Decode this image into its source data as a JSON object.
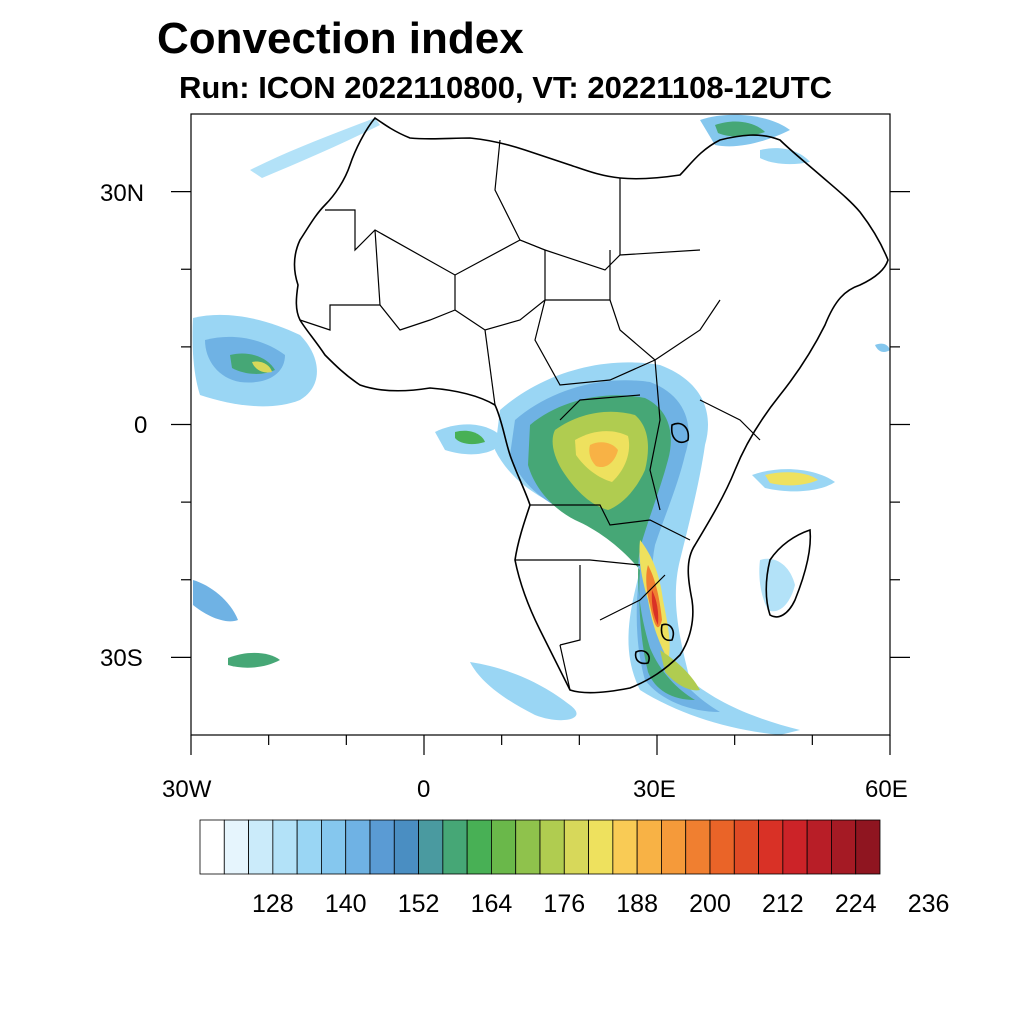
{
  "title": "Convection index",
  "subtitle": "Run: ICON 2022110800,  VT: 20221108-12UTC",
  "lat_labels": [
    "30N",
    "0",
    "30S"
  ],
  "lon_labels": [
    "30W",
    "0",
    "30E",
    "60E"
  ],
  "map_extent": {
    "lon_min": -30,
    "lon_max": 60,
    "lat_min": -40,
    "lat_max": 40
  },
  "colorbar": {
    "colors": [
      "#ffffff",
      "#e6f5fd",
      "#cbebfa",
      "#b3e2f8",
      "#9ad6f4",
      "#85c7ee",
      "#6fb2e4",
      "#5a9bd4",
      "#4a8ec2",
      "#4a9aa0",
      "#46a776",
      "#48b055",
      "#6ab84a",
      "#8fc24c",
      "#b0cc50",
      "#d7d85a",
      "#eee15e",
      "#f9cb55",
      "#f8b245",
      "#f59a3a",
      "#f07f30",
      "#ea6428",
      "#e04a25",
      "#d93126",
      "#cc2328",
      "#b81e27",
      "#a51a24",
      "#8f1520"
    ],
    "tick_labels": [
      "128",
      "140",
      "152",
      "164",
      "176",
      "188",
      "200",
      "212",
      "224",
      "236"
    ]
  }
}
